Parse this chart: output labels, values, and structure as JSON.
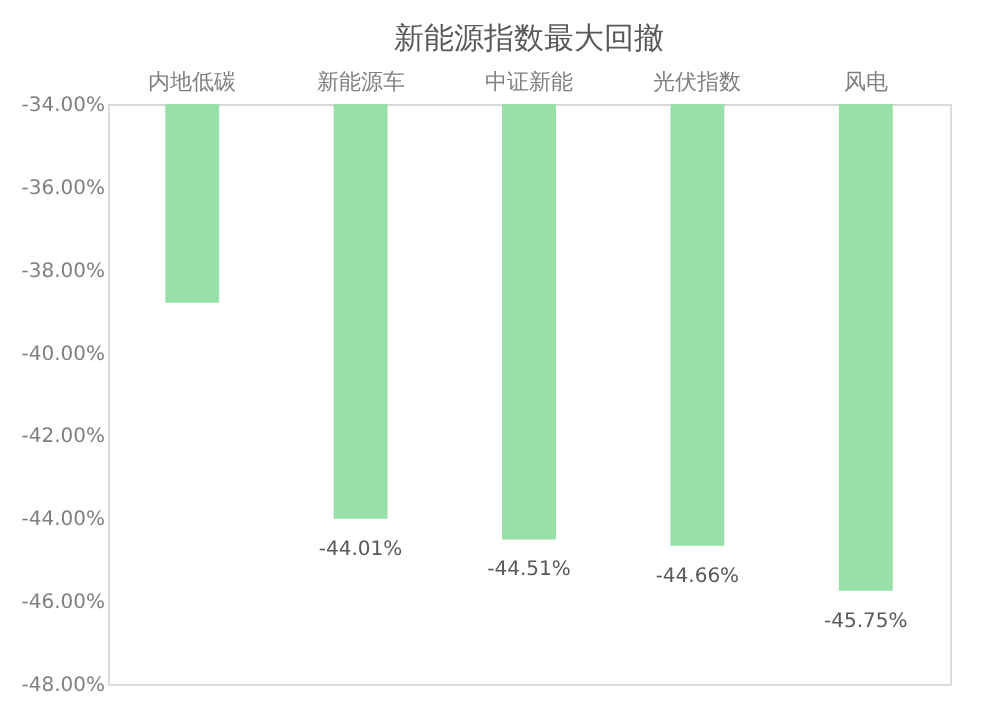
{
  "chart_data": {
    "type": "bar",
    "title": "新能源指数最大回撤",
    "categories": [
      "内地低碳",
      "新能源车",
      "中证新能",
      "光伏指数",
      "风电"
    ],
    "values": [
      -38.8,
      -44.01,
      -44.51,
      -44.66,
      -45.75
    ],
    "value_labels": [
      null,
      "-44.01%",
      "-44.51%",
      "-44.66%",
      "-45.75%"
    ],
    "color": "#98dfa8",
    "ylim": [
      -48,
      -34
    ],
    "yticks": [
      {
        "value": -34,
        "label": "-34.00%"
      },
      {
        "value": -36,
        "label": "-36.00%"
      },
      {
        "value": -38,
        "label": "-38.00%"
      },
      {
        "value": -40,
        "label": "-40.00%"
      },
      {
        "value": -42,
        "label": "-42.00%"
      },
      {
        "value": -44,
        "label": "-44.00%"
      },
      {
        "value": -46,
        "label": "-46.00%"
      },
      {
        "value": -48,
        "label": "-48.00%"
      }
    ],
    "grid": false
  }
}
